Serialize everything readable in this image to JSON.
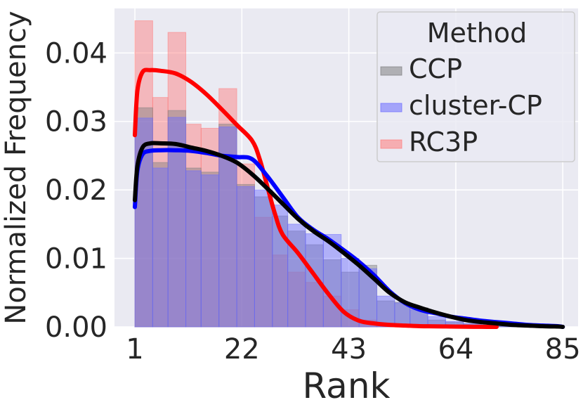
{
  "chart_data": {
    "type": "histogram",
    "xlabel": "Rank",
    "ylabel": "Normalized Frequency",
    "xlim": [
      -3,
      88
    ],
    "ylim": [
      0,
      0.0465
    ],
    "xticks": [
      1,
      22,
      43,
      64,
      85
    ],
    "yticks": [
      0.0,
      0.01,
      0.02,
      0.03,
      0.04
    ],
    "ytick_labels": [
      "0.00",
      "0.01",
      "0.02",
      "0.03",
      "0.04"
    ],
    "grid": true,
    "legend": {
      "title": "Method",
      "placement": "top-right"
    },
    "bin_edges": [
      1,
      4.5,
      7.5,
      11,
      14,
      17.5,
      21,
      24.5,
      28,
      31,
      34.5,
      38,
      41.5,
      45,
      48.5,
      52,
      55,
      58.5,
      62,
      65.5,
      69,
      72,
      75.5,
      79,
      82.5,
      85
    ],
    "series": [
      {
        "name": "CCP",
        "color": "#7f7f7f",
        "hist": [
          0.032,
          0.024,
          0.0316,
          0.0232,
          0.0226,
          0.0296,
          0.0208,
          0.019,
          0.0162,
          0.014,
          0.012,
          0.0098,
          0.008,
          0.009,
          0.0038,
          0.0036,
          0.0028,
          0.001,
          0.0007,
          0.0004,
          0.0002,
          0.0001,
          0.0001,
          0.0,
          0.0
        ],
        "kde_x": [
          1,
          1.5,
          2.5,
          4,
          6,
          9,
          12,
          15,
          18,
          21,
          24,
          27,
          30,
          33,
          36,
          39,
          42,
          45,
          48,
          51,
          54,
          57,
          60,
          63,
          66,
          69,
          72,
          75,
          78,
          81,
          84,
          85
        ],
        "kde_y": [
          0.0185,
          0.0235,
          0.0262,
          0.0268,
          0.0268,
          0.0267,
          0.0262,
          0.0257,
          0.025,
          0.024,
          0.0223,
          0.0202,
          0.018,
          0.0158,
          0.014,
          0.0125,
          0.0108,
          0.009,
          0.007,
          0.005,
          0.0036,
          0.0028,
          0.0021,
          0.0015,
          0.001,
          0.0007,
          0.0005,
          0.0003,
          0.0002,
          0.0001,
          5e-05,
          0.0
        ]
      },
      {
        "name": "cluster-CP",
        "color": "#0000ff",
        "hist": [
          0.0305,
          0.0232,
          0.0306,
          0.0228,
          0.0222,
          0.0292,
          0.0205,
          0.02,
          0.0178,
          0.015,
          0.0136,
          0.0135,
          0.01,
          0.0085,
          0.0045,
          0.0035,
          0.0025,
          0.0015,
          0.0008,
          0.0005,
          0.0003,
          0.0002,
          0.0001,
          5e-05,
          0.0
        ],
        "kde_x": [
          1,
          1.5,
          2.5,
          4,
          6,
          9,
          12,
          15,
          18,
          21,
          24,
          27,
          30,
          33,
          36,
          39,
          42,
          45,
          48,
          51,
          54,
          57,
          60,
          63,
          66,
          69,
          72,
          75,
          78,
          81,
          84,
          85
        ],
        "kde_y": [
          0.0175,
          0.0228,
          0.0252,
          0.0257,
          0.0258,
          0.0258,
          0.0257,
          0.0254,
          0.025,
          0.0248,
          0.0245,
          0.022,
          0.019,
          0.016,
          0.0142,
          0.0128,
          0.0112,
          0.0095,
          0.0075,
          0.0052,
          0.0035,
          0.0025,
          0.002,
          0.0015,
          0.0012,
          0.0009,
          0.0007,
          0.0005,
          0.0003,
          0.0002,
          0.0001,
          0.0
        ]
      },
      {
        "name": "RC3P",
        "color": "#ff0000",
        "hist": [
          0.0447,
          0.0335,
          0.043,
          0.0296,
          0.029,
          0.0348,
          0.0238,
          0.016,
          0.0105,
          0.008,
          0.0065,
          0.0045,
          0.0025,
          0.001,
          0.0005,
          0.0003,
          0.0002,
          0.0001,
          0.0,
          0.0,
          0.0,
          0.0,
          0.0,
          0.0,
          0.0
        ],
        "kde_x": [
          1,
          1.5,
          2.5,
          4,
          6,
          9,
          12,
          15,
          18,
          21,
          24,
          25.5,
          27,
          28.5,
          30,
          33,
          36,
          39,
          42,
          45,
          48,
          51,
          54,
          57,
          60,
          63,
          66,
          69,
          72
        ],
        "kde_y": [
          0.028,
          0.0345,
          0.0372,
          0.0375,
          0.0374,
          0.037,
          0.0358,
          0.034,
          0.0318,
          0.0295,
          0.0272,
          0.0245,
          0.0205,
          0.0165,
          0.0135,
          0.0108,
          0.0078,
          0.0048,
          0.0022,
          0.0009,
          0.0005,
          0.0003,
          0.0002,
          0.0001,
          8e-05,
          5e-05,
          3e-05,
          1e-05,
          0.0
        ]
      }
    ]
  }
}
